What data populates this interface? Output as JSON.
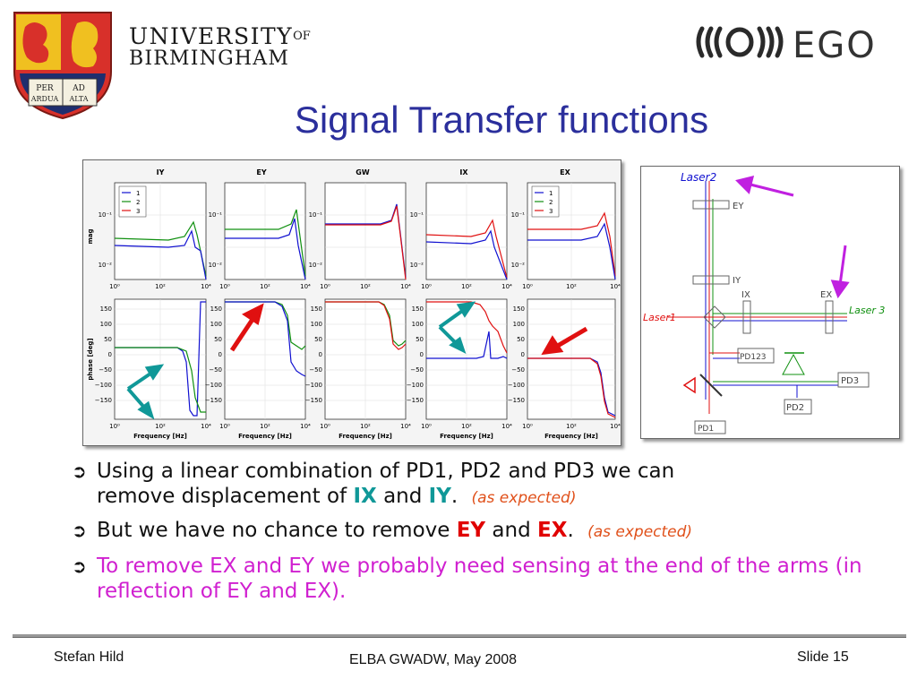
{
  "header": {
    "university_line1": "UNIVERSITY",
    "university_of": "OF",
    "university_line2": "BIRMINGHAM",
    "crest_motto": [
      "PER",
      "AD",
      "ARDUA",
      "ALTA"
    ],
    "ego_text": "EGO"
  },
  "title": "Signal Transfer functions",
  "plots": {
    "columns": [
      "IY",
      "EY",
      "GW",
      "IX",
      "EX"
    ],
    "mag_ylabel": "mag",
    "phase_ylabel": "phase [deg]",
    "xlabel": "Frequency [Hz]",
    "mag_yticks": [
      "10⁻¹",
      "10⁻²"
    ],
    "phase_yticks": [
      "150",
      "100",
      "50",
      "0",
      "−50",
      "−100",
      "−150"
    ],
    "xticks": [
      "10⁰",
      "10²",
      "10⁴"
    ],
    "legend": [
      "1",
      "2",
      "3"
    ],
    "colors": {
      "s1": "#1010d0",
      "s2": "#109010",
      "s3": "#e01010"
    }
  },
  "setup": {
    "labels": {
      "laser2": "Laser2",
      "laser1": "Laser1",
      "laser3": "Laser 3",
      "ey": "EY",
      "iy": "IY",
      "ix": "IX",
      "ex": "EX",
      "pd123": "PD123",
      "pd3": "PD3",
      "pd2": "PD2",
      "pd1": "PD1"
    }
  },
  "bullets": {
    "b1_text": "Using a linear combination of PD1, PD2 and PD3 we can",
    "b1_text2": "remove displacement of",
    "b1_kw1": "IX",
    "b1_and": "and",
    "b1_kw2": "IY",
    "b1_period": ".",
    "b1_note": "(as expected)",
    "b2_text": "But we have no chance to remove",
    "b2_kw1": "EY",
    "b2_and": "and",
    "b2_kw2": "EX",
    "b2_period": ".",
    "b2_note": "(as expected)",
    "b3_text": "To remove EX and EY we probably need sensing at the end of the arms (in reflection of EY and EX)."
  },
  "footer": {
    "author": "Stefan Hild",
    "event": "ELBA GWADW, May 2008",
    "slide": "Slide 15"
  }
}
